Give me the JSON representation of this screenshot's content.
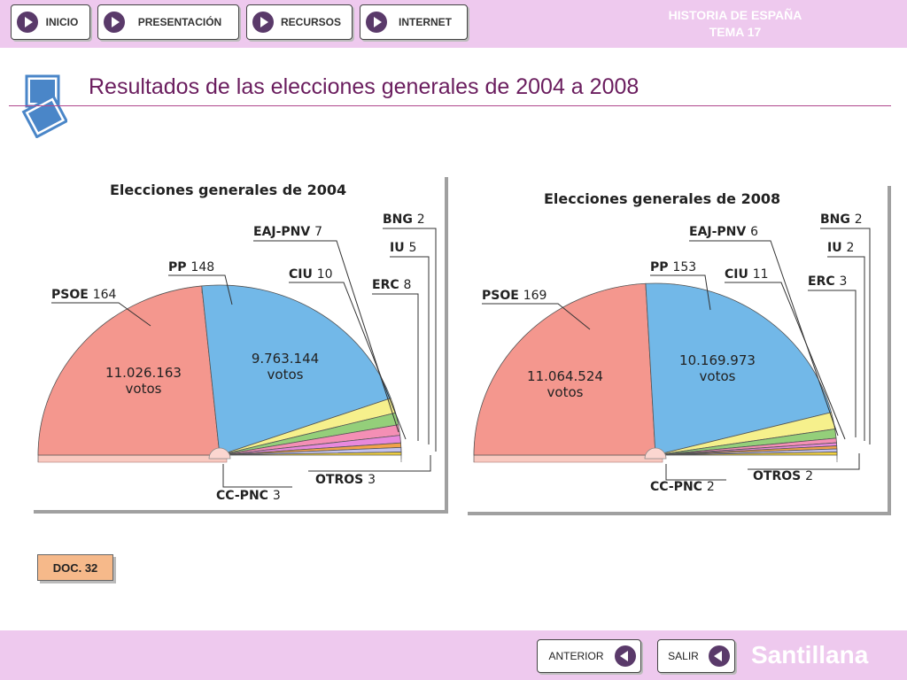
{
  "nav": {
    "items": [
      {
        "label": "INICIO"
      },
      {
        "label": "PRESENTACIÓN"
      },
      {
        "label": "RECURSOS"
      },
      {
        "label": "INTERNET"
      }
    ]
  },
  "course": {
    "subject": "HISTORIA DE ESPAÑA",
    "unit": "TEMA 17"
  },
  "header": {
    "title": "Resultados de las elecciones generales de 2004 a 2008"
  },
  "doc_label": "DOC. 32",
  "footer": {
    "prev_label": "ANTERIOR",
    "exit_label": "SALIR",
    "brand": "Santillana"
  },
  "colors": {
    "bar": "#eec9ee",
    "accent": "#b0478d",
    "title": "#6a1d5e"
  },
  "chart_data": [
    {
      "type": "pie",
      "title": "Elecciones generales de 2004",
      "total_seats": 350,
      "slices": [
        {
          "party": "PSOE",
          "seats": 164,
          "votes": "11.026.163",
          "votes_unit": "votos",
          "color": "#f4978e"
        },
        {
          "party": "PP",
          "seats": 148,
          "votes": "9.763.144",
          "votes_unit": "votos",
          "color": "#72b8e8"
        },
        {
          "party": "CIU",
          "seats": 10,
          "color": "#f6f08c"
        },
        {
          "party": "ERC",
          "seats": 8,
          "color": "#94cf7a"
        },
        {
          "party": "EAJ-PNV",
          "seats": 7,
          "color": "#f48fb5"
        },
        {
          "party": "IU",
          "seats": 5,
          "color": "#e889dd"
        },
        {
          "party": "CC-PNC",
          "seats": 3,
          "color": "#f2a24c"
        },
        {
          "party": "OTROS",
          "seats": 3,
          "color": "#c2c2ee"
        },
        {
          "party": "BNG",
          "seats": 2,
          "color": "#f0d040"
        }
      ]
    },
    {
      "type": "pie",
      "title": "Elecciones generales de 2008",
      "total_seats": 350,
      "slices": [
        {
          "party": "PSOE",
          "seats": 169,
          "votes": "11.064.524",
          "votes_unit": "votos",
          "color": "#f4978e"
        },
        {
          "party": "PP",
          "seats": 153,
          "votes": "10.169.973",
          "votes_unit": "votos",
          "color": "#72b8e8"
        },
        {
          "party": "CIU",
          "seats": 11,
          "color": "#f6f08c"
        },
        {
          "party": "EAJ-PNV",
          "seats": 6,
          "color": "#94cf7a"
        },
        {
          "party": "ERC",
          "seats": 3,
          "color": "#f48fb5"
        },
        {
          "party": "IU",
          "seats": 2,
          "color": "#e889dd"
        },
        {
          "party": "CC-PNC",
          "seats": 2,
          "color": "#f2a24c"
        },
        {
          "party": "OTROS",
          "seats": 2,
          "color": "#c2c2ee"
        },
        {
          "party": "BNG",
          "seats": 2,
          "color": "#f0d040"
        }
      ]
    }
  ]
}
